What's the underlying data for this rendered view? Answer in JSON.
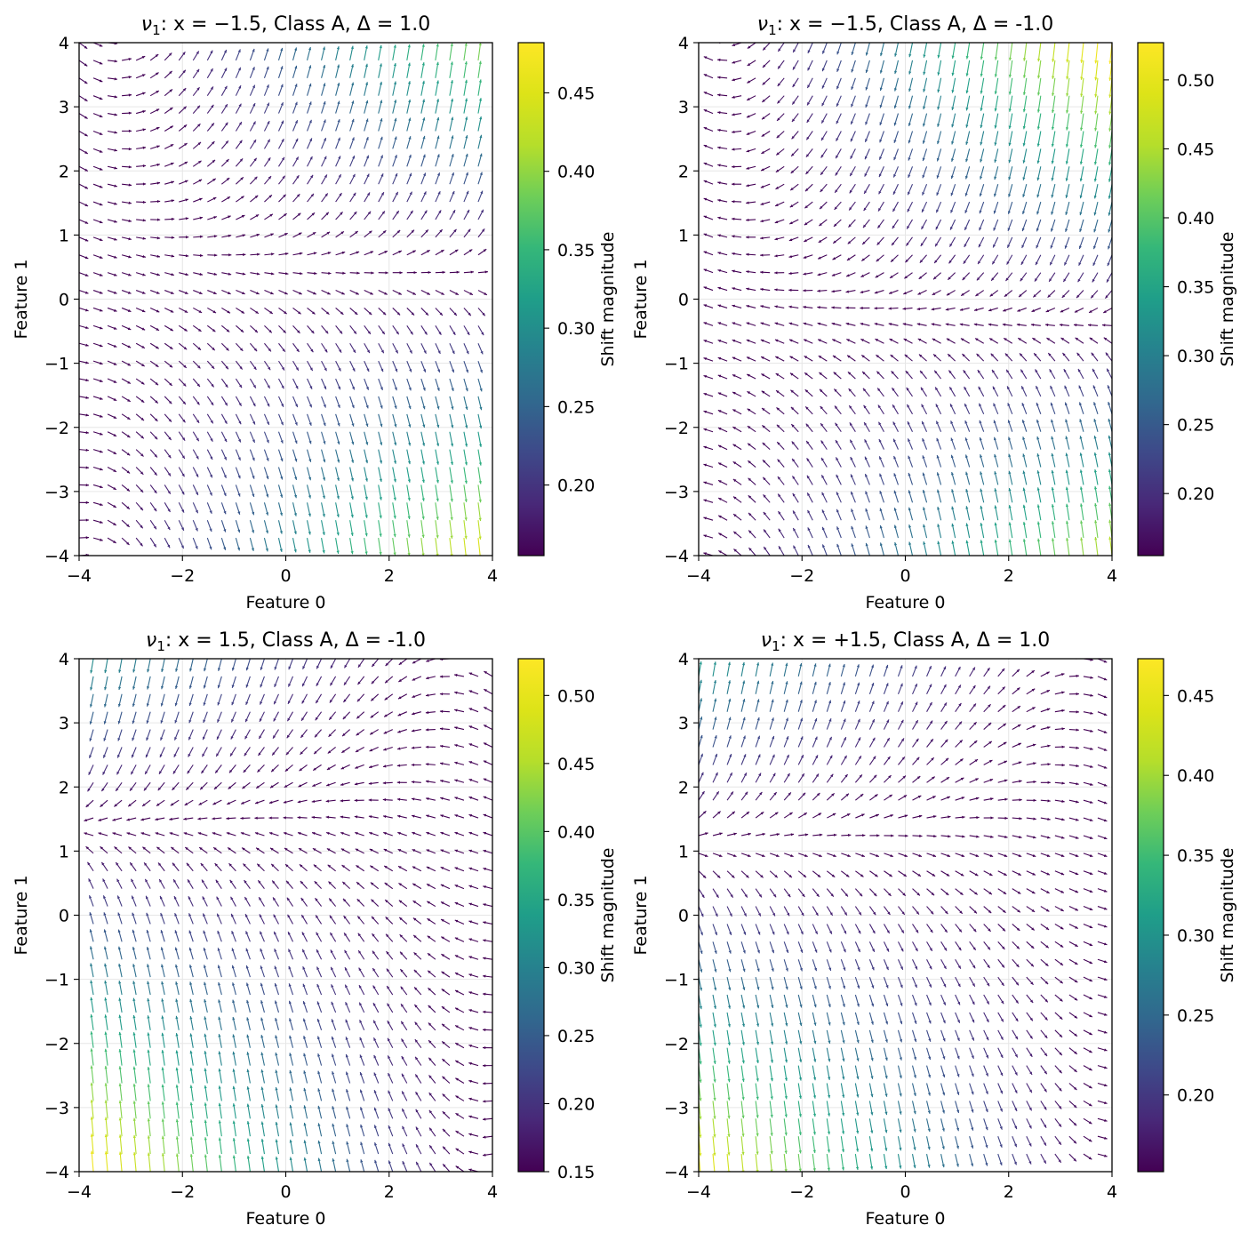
{
  "chart_data": [
    {
      "type": "quiver",
      "title": "ν₁:  x = −1.5, Class A, Δ = 1.0",
      "title_parts": {
        "nu": "ν",
        "sub": "1",
        "rest": ":  x = −1.5, Class A, Δ = 1.0"
      },
      "xlabel": "Feature 0",
      "ylabel": "Feature 1",
      "xlim": [
        -4,
        4
      ],
      "ylim": [
        -4,
        4
      ],
      "xticks": [
        -4,
        -2,
        0,
        2,
        4
      ],
      "yticks": [
        -4,
        -3,
        -2,
        -1,
        0,
        1,
        2,
        3,
        4
      ],
      "xtick_labels": [
        "−4",
        "−2",
        "0",
        "2",
        "4"
      ],
      "ytick_labels": [
        "−4",
        "−3",
        "−2",
        "−1",
        "0",
        "1",
        "2",
        "3",
        "4"
      ],
      "grid": true,
      "colormap": "viridis",
      "colorbar": {
        "label": "Shift magnitude",
        "range": [
          0.155,
          0.482
        ],
        "ticks": [
          0.2,
          0.25,
          0.3,
          0.35,
          0.4,
          0.45
        ],
        "tick_labels": [
          "0.20",
          "0.25",
          "0.30",
          "0.35",
          "0.40",
          "0.45"
        ]
      },
      "field": {
        "x0": -1.5,
        "delta": 1.0,
        "center_y": 0.75,
        "mirror": false
      }
    },
    {
      "type": "quiver",
      "title": "ν₁: x = −1.5, Class A, Δ = -1.0",
      "title_parts": {
        "nu": "ν",
        "sub": "1",
        "rest": ": x = −1.5, Class A, Δ = -1.0"
      },
      "xlabel": "Feature 0",
      "ylabel": "Feature 1",
      "xlim": [
        -4,
        4
      ],
      "ylim": [
        -4,
        4
      ],
      "xticks": [
        -4,
        -2,
        0,
        2,
        4
      ],
      "yticks": [
        -4,
        -3,
        -2,
        -1,
        0,
        1,
        2,
        3,
        4
      ],
      "xtick_labels": [
        "−4",
        "−2",
        "0",
        "2",
        "4"
      ],
      "ytick_labels": [
        "−4",
        "−3",
        "−2",
        "−1",
        "0",
        "1",
        "2",
        "3",
        "4"
      ],
      "grid": true,
      "colormap": "viridis",
      "colorbar": {
        "label": "Shift magnitude",
        "range": [
          0.155,
          0.527
        ],
        "ticks": [
          0.2,
          0.25,
          0.3,
          0.35,
          0.4,
          0.45,
          0.5
        ],
        "tick_labels": [
          "0.20",
          "0.25",
          "0.30",
          "0.35",
          "0.40",
          "0.45",
          "0.50"
        ]
      },
      "field": {
        "x0": -1.5,
        "delta": -1.0,
        "center_y": 0.0,
        "mirror": false
      }
    },
    {
      "type": "quiver",
      "title": "ν₁: x = 1.5, Class A, Δ = -1.0",
      "title_parts": {
        "nu": "ν",
        "sub": "1",
        "rest": ": x = 1.5, Class A, Δ = -1.0"
      },
      "xlabel": "Feature 0",
      "ylabel": "Feature 1",
      "xlim": [
        -4,
        4
      ],
      "ylim": [
        -4,
        4
      ],
      "xticks": [
        -4,
        -2,
        0,
        2,
        4
      ],
      "yticks": [
        -4,
        -3,
        -2,
        -1,
        0,
        1,
        2,
        3,
        4
      ],
      "xtick_labels": [
        "−4",
        "−2",
        "0",
        "2",
        "4"
      ],
      "ytick_labels": [
        "−4",
        "−3",
        "−2",
        "−1",
        "0",
        "1",
        "2",
        "3",
        "4"
      ],
      "grid": true,
      "colormap": "viridis",
      "colorbar": {
        "label": "Shift magnitude",
        "range": [
          0.15,
          0.527
        ],
        "ticks": [
          0.15,
          0.2,
          0.25,
          0.3,
          0.35,
          0.4,
          0.45,
          0.5
        ],
        "tick_labels": [
          "0.15",
          "0.20",
          "0.25",
          "0.30",
          "0.35",
          "0.40",
          "0.45",
          "0.50"
        ]
      },
      "field": {
        "x0": 1.5,
        "delta": -1.0,
        "center_y": 1.75,
        "mirror": true
      }
    },
    {
      "type": "quiver",
      "title": "ν₁: x = +1.5, Class A, Δ = 1.0",
      "title_parts": {
        "nu": "ν",
        "sub": "1",
        "rest": ": x = +1.5, Class A, Δ = 1.0"
      },
      "xlabel": "Feature 0",
      "ylabel": "Feature 1",
      "xlim": [
        -4,
        4
      ],
      "ylim": [
        -4,
        4
      ],
      "xticks": [
        -4,
        -2,
        0,
        2,
        4
      ],
      "yticks": [
        -4,
        -3,
        -2,
        -1,
        0,
        1,
        2,
        3,
        4
      ],
      "xtick_labels": [
        "−4",
        "−2",
        "0",
        "2",
        "4"
      ],
      "ytick_labels": [
        "−4",
        "−3",
        "−2",
        "−1",
        "0",
        "1",
        "2",
        "3",
        "4"
      ],
      "grid": true,
      "colormap": "viridis",
      "colorbar": {
        "label": "Shift magnitude",
        "range": [
          0.152,
          0.473
        ],
        "ticks": [
          0.2,
          0.25,
          0.3,
          0.35,
          0.4,
          0.45
        ],
        "tick_labels": [
          "0.20",
          "0.25",
          "0.30",
          "0.35",
          "0.40",
          "0.45"
        ]
      },
      "field": {
        "x0": 1.5,
        "delta": 1.0,
        "center_y": 1.5,
        "mirror": true
      }
    }
  ]
}
